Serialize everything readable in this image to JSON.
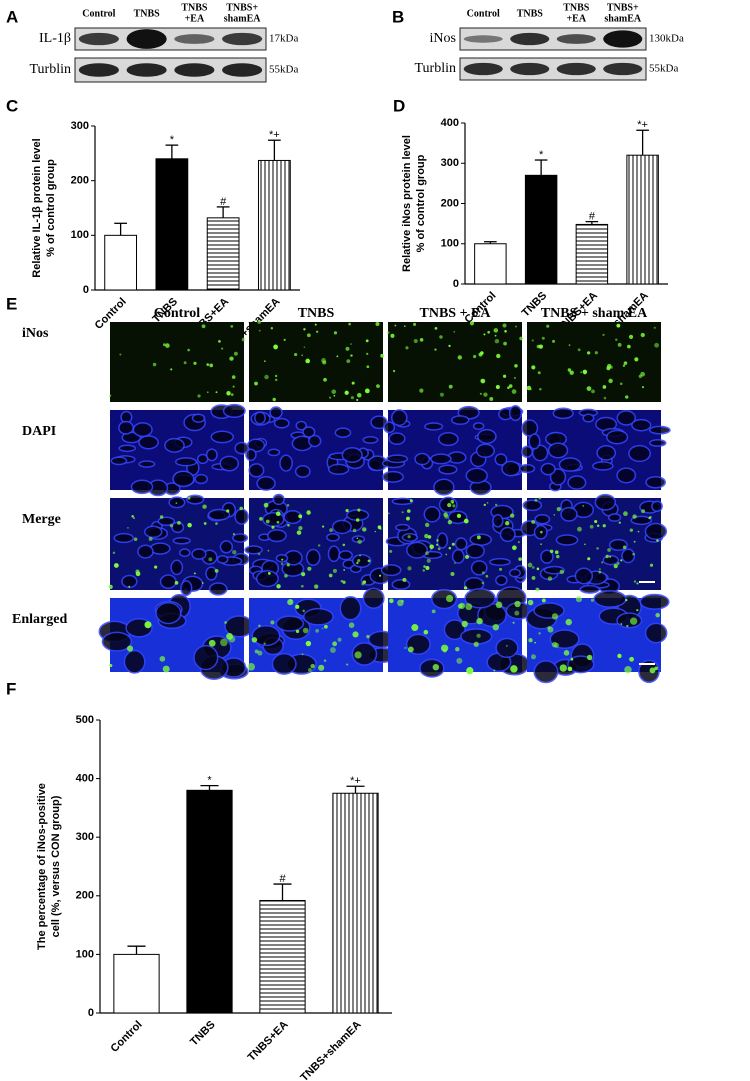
{
  "panel_A": {
    "letter": "A",
    "lanes": [
      [
        "Control"
      ],
      [
        "TNBS"
      ],
      [
        "TNBS",
        "+EA"
      ],
      [
        "TNBS+",
        "shamEA"
      ]
    ],
    "rows": [
      {
        "name": "IL-1β",
        "size": "17kDa"
      },
      {
        "name": "Turblin",
        "size": "55kDa"
      }
    ]
  },
  "panel_B": {
    "letter": "B",
    "lanes": [
      [
        "Control"
      ],
      [
        "TNBS"
      ],
      [
        "TNBS",
        "+EA"
      ],
      [
        "TNBS+",
        "shamEA"
      ]
    ],
    "rows": [
      {
        "name": "iNos",
        "size": "130kDa"
      },
      {
        "name": "Turblin",
        "size": "55kDa"
      }
    ]
  },
  "panel_E": {
    "letter": "E",
    "columns": [
      "Control",
      "TNBS",
      "TNBS + EA",
      "TNBS + sham EA"
    ],
    "rows": [
      "iNos",
      "DAPI",
      "Merge",
      "Enlarged"
    ]
  },
  "chart_data": [
    {
      "type": "bar",
      "panel": "C",
      "ylabel": [
        "Relative  IL-1β  protein level",
        "% of control group"
      ],
      "categories": [
        "Control",
        "TNBS",
        "TNBS+EA",
        "TNBS+shamEA"
      ],
      "values": [
        100,
        240,
        132,
        237
      ],
      "errors": [
        22,
        25,
        20,
        37
      ],
      "annotations": [
        null,
        "*",
        "#",
        "*+"
      ],
      "bar_fills": [
        "white",
        "black",
        "hlines",
        "vlines"
      ],
      "ylim": [
        0,
        300
      ],
      "yticks": [
        0,
        100,
        200,
        300
      ]
    },
    {
      "type": "bar",
      "panel": "D",
      "ylabel": [
        "Relative  iNos protein level",
        "% of control group"
      ],
      "categories": [
        "Control",
        "TNBS",
        "TNBS+EA",
        "TNBS+shamEA"
      ],
      "values": [
        100,
        270,
        148,
        320
      ],
      "errors": [
        5,
        38,
        7,
        62
      ],
      "annotations": [
        null,
        "*",
        "#",
        "*+"
      ],
      "bar_fills": [
        "white",
        "black",
        "hlines",
        "vlines"
      ],
      "ylim": [
        0,
        400
      ],
      "yticks": [
        0,
        100,
        200,
        300,
        400
      ]
    },
    {
      "type": "bar",
      "panel": "F",
      "ylabel": [
        "The percentage of iNos-positive",
        "cell  (%, versus CON group)"
      ],
      "categories": [
        "Control",
        "TNBS",
        "TNBS+EA",
        "TNBS+shamEA"
      ],
      "values": [
        100,
        380,
        192,
        375
      ],
      "errors": [
        14,
        8,
        28,
        12
      ],
      "annotations": [
        null,
        "*",
        "#",
        "*+"
      ],
      "bar_fills": [
        "white",
        "black",
        "hlines",
        "vlines"
      ],
      "ylim": [
        0,
        500
      ],
      "yticks": [
        0,
        100,
        200,
        300,
        400,
        500
      ]
    }
  ]
}
